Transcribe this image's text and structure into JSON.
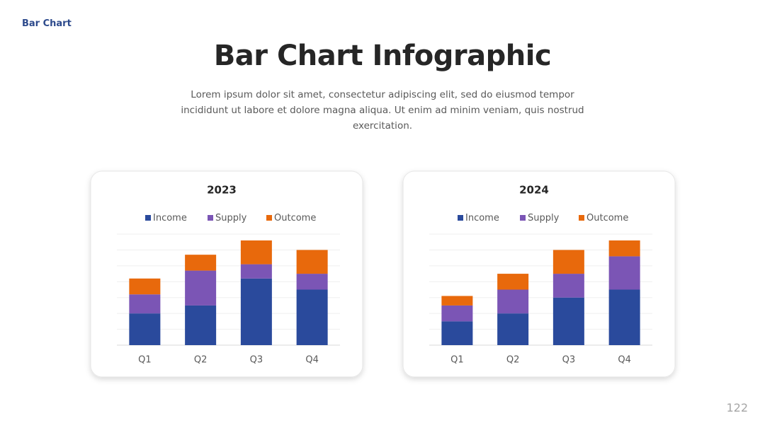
{
  "slide": {
    "tag": "Bar Chart",
    "title": "Bar Chart Infographic",
    "subtitle": "Lorem ipsum dolor sit amet, consectetur adipiscing elit, sed do eiusmod tempor incididunt ut labore et dolore magna aliqua. Ut enim ad minim veniam, quis nostrud exercitation.",
    "page_number": "122"
  },
  "chart_data": [
    {
      "type": "stacked-bar",
      "title": "2023",
      "categories": [
        "Q1",
        "Q2",
        "Q3",
        "Q4"
      ],
      "series": [
        {
          "name": "Income",
          "color": "#2a4a9c",
          "values": [
            20,
            25,
            42,
            35
          ]
        },
        {
          "name": "Supply",
          "color": "#7b55b5",
          "values": [
            12,
            22,
            9,
            10
          ]
        },
        {
          "name": "Outcome",
          "color": "#e8690c",
          "values": [
            10,
            10,
            15,
            15
          ]
        }
      ],
      "ylim": [
        0,
        70
      ],
      "yticks": [
        0,
        10,
        20,
        30,
        40,
        50,
        60,
        70
      ],
      "grid": true,
      "legend": "top"
    },
    {
      "type": "stacked-bar",
      "title": "2024",
      "categories": [
        "Q1",
        "Q2",
        "Q3",
        "Q4"
      ],
      "series": [
        {
          "name": "Income",
          "color": "#2a4a9c",
          "values": [
            15,
            20,
            30,
            35
          ]
        },
        {
          "name": "Supply",
          "color": "#7b55b5",
          "values": [
            10,
            15,
            15,
            21
          ]
        },
        {
          "name": "Outcome",
          "color": "#e8690c",
          "values": [
            6,
            10,
            15,
            10
          ]
        }
      ],
      "ylim": [
        0,
        70
      ],
      "yticks": [
        0,
        10,
        20,
        30,
        40,
        50,
        60,
        70
      ],
      "grid": true,
      "legend": "top"
    }
  ]
}
